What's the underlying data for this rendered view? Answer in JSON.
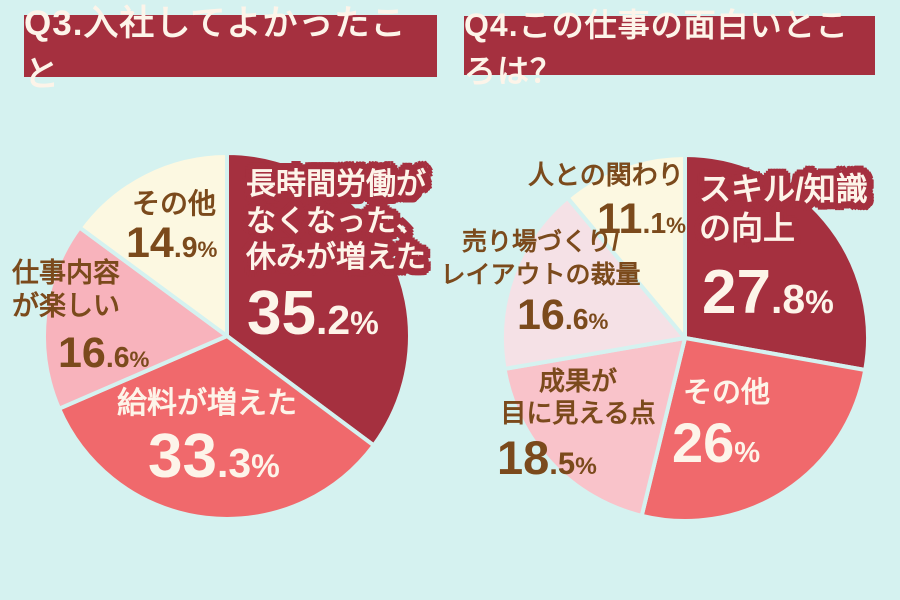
{
  "colors": {
    "background": "#d5f2f0",
    "banner": "#a5303f",
    "dark_red": "#a5303f",
    "coral": "#f0696c",
    "pink": "#f8b3bc",
    "pink_light": "#f9c3ca",
    "pink_pale": "#f5e1e6",
    "cream": "#fcf8e1",
    "brown_text": "#7b4a1c",
    "white_text": "#fdf4e9"
  },
  "chart_data": [
    {
      "type": "pie",
      "title": "Q3.入社してよかったこと",
      "start_angle_deg": 0,
      "direction": "clockwise",
      "legend_position": "none",
      "slices": [
        {
          "label": "長時間労働がなくなった、休みが増えた",
          "lines": [
            "長時間労働が",
            "なくなった、",
            "休みが増えた"
          ],
          "value": 35.2,
          "color": "#a5303f",
          "text_color": "#fdf4e9"
        },
        {
          "label": "給料が増えた",
          "lines": [
            "給料が増えた"
          ],
          "value": 33.3,
          "color": "#f0696c",
          "text_color": "#fdf4e9"
        },
        {
          "label": "仕事内容が楽しい",
          "lines": [
            "仕事内容",
            "が楽しい"
          ],
          "value": 16.6,
          "color": "#f8b3bc",
          "text_color": "#7b4a1c"
        },
        {
          "label": "その他",
          "lines": [
            "その他"
          ],
          "value": 14.9,
          "color": "#fcf8e1",
          "text_color": "#7b4a1c"
        }
      ]
    },
    {
      "type": "pie",
      "title": "Q4.この仕事の面白いところは？",
      "start_angle_deg": 0,
      "direction": "clockwise",
      "legend_position": "none",
      "slices": [
        {
          "label": "スキル/知識の向上",
          "lines": [
            "スキル/知識",
            "の向上"
          ],
          "value": 27.8,
          "color": "#a5303f",
          "text_color": "#fdf4e9"
        },
        {
          "label": "その他",
          "lines": [
            "その他"
          ],
          "value": 26,
          "color": "#f0696c",
          "text_color": "#fdf4e9"
        },
        {
          "label": "成果が目に見える点",
          "lines": [
            "成果が",
            "目に見える点"
          ],
          "value": 18.5,
          "color": "#f9c3ca",
          "text_color": "#7b4a1c"
        },
        {
          "label": "売り場づくり/レイアウトの裁量",
          "lines": [
            "売り場づくり/",
            "レイアウトの裁量"
          ],
          "value": 16.6,
          "color": "#f5e1e6",
          "text_color": "#7b4a1c"
        },
        {
          "label": "人との関わり",
          "lines": [
            "人との関わり"
          ],
          "value": 11.1,
          "color": "#fcf8e1",
          "text_color": "#7b4a1c"
        }
      ]
    }
  ]
}
